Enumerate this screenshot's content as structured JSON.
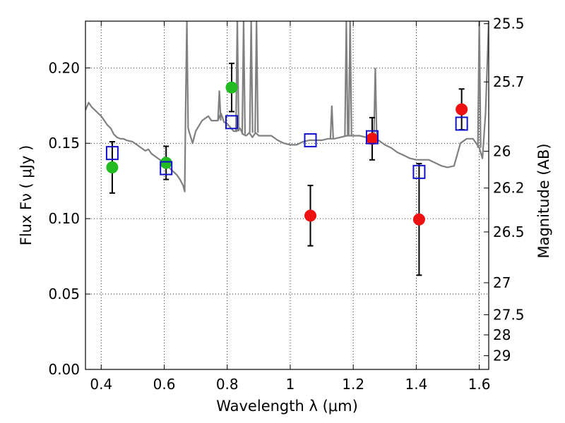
{
  "chart_data": {
    "type": "scatter",
    "xlabel": "Wavelength  λ (μm)",
    "ylabel": "Flux  Fν  ( μJy )",
    "ylabel_right": "Magnitude (AB)",
    "xlim": [
      0.35,
      1.63
    ],
    "ylim": [
      0.0,
      0.231
    ],
    "grid": true,
    "x_ticks": [
      0.4,
      0.6,
      0.8,
      1.0,
      1.2,
      1.4,
      1.6
    ],
    "x_tick_labels": [
      "0.4",
      "0.6",
      "0.8",
      "1",
      "1.2",
      "1.4",
      "1.6"
    ],
    "y_ticks": [
      0.0,
      0.05,
      0.1,
      0.15,
      0.2
    ],
    "y_tick_labels": [
      "0.00",
      "0.05",
      "0.10",
      "0.15",
      "0.20"
    ],
    "right_ticks": [
      {
        "label": "25.5",
        "flux": 0.2293
      },
      {
        "label": "25.7",
        "flux": 0.1907
      },
      {
        "label": "26",
        "flux": 0.1447
      },
      {
        "label": "26.2",
        "flux": 0.1203
      },
      {
        "label": "26.5",
        "flux": 0.0912
      },
      {
        "label": "27",
        "flux": 0.0575
      },
      {
        "label": "27.5",
        "flux": 0.0363
      },
      {
        "label": "28",
        "flux": 0.0229
      },
      {
        "label": "29",
        "flux": 0.0091
      }
    ],
    "series": [
      {
        "style": "green-filled-circle",
        "color": "#22bb22",
        "points": [
          {
            "x": 0.435,
            "y": 0.134,
            "err": 0.017
          },
          {
            "x": 0.606,
            "y": 0.137,
            "err": 0.011
          },
          {
            "x": 0.814,
            "y": 0.187,
            "err": 0.016
          }
        ]
      },
      {
        "style": "red-filled-circle",
        "color": "#ee1111",
        "points": [
          {
            "x": 1.064,
            "y": 0.102,
            "err": 0.02
          },
          {
            "x": 1.26,
            "y": 0.153,
            "err": 0.014
          },
          {
            "x": 1.409,
            "y": 0.0995,
            "err": 0.037
          },
          {
            "x": 1.544,
            "y": 0.1725,
            "err": 0.0135
          }
        ]
      },
      {
        "style": "blue-open-square",
        "color": "#1111cc",
        "points": [
          {
            "x": 0.435,
            "y": 0.1435
          },
          {
            "x": 0.606,
            "y": 0.1335
          },
          {
            "x": 0.814,
            "y": 0.164
          },
          {
            "x": 1.064,
            "y": 0.152
          },
          {
            "x": 1.26,
            "y": 0.154
          },
          {
            "x": 1.409,
            "y": 0.131
          },
          {
            "x": 1.544,
            "y": 0.163
          }
        ]
      },
      {
        "style": "model-spectrum-line",
        "color": "#808080",
        "points": [
          [
            0.35,
            0.172
          ],
          [
            0.36,
            0.177
          ],
          [
            0.37,
            0.174
          ],
          [
            0.38,
            0.172
          ],
          [
            0.39,
            0.17
          ],
          [
            0.4,
            0.168
          ],
          [
            0.41,
            0.165
          ],
          [
            0.42,
            0.162
          ],
          [
            0.43,
            0.16
          ],
          [
            0.44,
            0.156
          ],
          [
            0.45,
            0.154
          ],
          [
            0.46,
            0.153
          ],
          [
            0.47,
            0.153
          ],
          [
            0.48,
            0.152
          ],
          [
            0.5,
            0.151
          ],
          [
            0.52,
            0.148
          ],
          [
            0.54,
            0.145
          ],
          [
            0.55,
            0.146
          ],
          [
            0.56,
            0.143
          ],
          [
            0.58,
            0.14
          ],
          [
            0.6,
            0.137
          ],
          [
            0.61,
            0.135
          ],
          [
            0.62,
            0.133
          ],
          [
            0.63,
            0.131
          ],
          [
            0.64,
            0.129
          ],
          [
            0.65,
            0.126
          ],
          [
            0.66,
            0.122
          ],
          [
            0.665,
            0.118
          ],
          [
            0.668,
            0.175
          ],
          [
            0.672,
            0.231
          ],
          [
            0.676,
            0.16
          ],
          [
            0.68,
            0.157
          ],
          [
            0.69,
            0.15
          ],
          [
            0.7,
            0.158
          ],
          [
            0.72,
            0.165
          ],
          [
            0.74,
            0.168
          ],
          [
            0.75,
            0.165
          ],
          [
            0.77,
            0.165
          ],
          [
            0.78,
            0.17
          ],
          [
            0.79,
            0.164
          ],
          [
            0.8,
            0.163
          ],
          [
            0.82,
            0.158
          ],
          [
            0.83,
            0.158
          ],
          [
            0.84,
            0.16
          ],
          [
            0.85,
            0.156
          ],
          [
            0.86,
            0.155
          ],
          [
            0.87,
            0.157
          ],
          [
            0.88,
            0.154
          ],
          [
            0.89,
            0.157
          ],
          [
            0.9,
            0.155
          ],
          [
            0.92,
            0.155
          ],
          [
            0.94,
            0.155
          ],
          [
            0.96,
            0.152
          ],
          [
            0.98,
            0.15
          ],
          [
            1.0,
            0.149
          ],
          [
            1.02,
            0.149
          ],
          [
            1.04,
            0.151
          ],
          [
            1.06,
            0.152
          ],
          [
            1.08,
            0.152
          ],
          [
            1.1,
            0.152
          ],
          [
            1.12,
            0.153
          ],
          [
            1.14,
            0.153
          ],
          [
            1.16,
            0.154
          ],
          [
            1.18,
            0.155
          ],
          [
            1.2,
            0.155
          ],
          [
            1.22,
            0.155
          ],
          [
            1.24,
            0.154
          ],
          [
            1.26,
            0.154
          ],
          [
            1.28,
            0.152
          ],
          [
            1.3,
            0.149
          ],
          [
            1.32,
            0.147
          ],
          [
            1.34,
            0.144
          ],
          [
            1.36,
            0.142
          ],
          [
            1.38,
            0.14
          ],
          [
            1.4,
            0.139
          ],
          [
            1.42,
            0.139
          ],
          [
            1.44,
            0.139
          ],
          [
            1.46,
            0.137
          ],
          [
            1.48,
            0.135
          ],
          [
            1.5,
            0.134
          ],
          [
            1.52,
            0.135
          ],
          [
            1.54,
            0.15
          ],
          [
            1.56,
            0.153
          ],
          [
            1.58,
            0.153
          ],
          [
            1.6,
            0.147
          ],
          [
            1.61,
            0.14
          ],
          [
            1.62,
            0.17
          ],
          [
            1.63,
            0.231
          ]
        ]
      }
    ],
    "model_emission_lines": [
      [
        0.775,
        0.165,
        0.185
      ],
      [
        0.832,
        0.158,
        0.231
      ],
      [
        0.852,
        0.156,
        0.231
      ],
      [
        0.876,
        0.157,
        0.231
      ],
      [
        0.893,
        0.157,
        0.231
      ],
      [
        1.132,
        0.153,
        0.175
      ],
      [
        1.178,
        0.155,
        0.231
      ],
      [
        1.19,
        0.155,
        0.231
      ],
      [
        1.27,
        0.154,
        0.2
      ],
      [
        1.6,
        0.147,
        0.231
      ]
    ]
  }
}
